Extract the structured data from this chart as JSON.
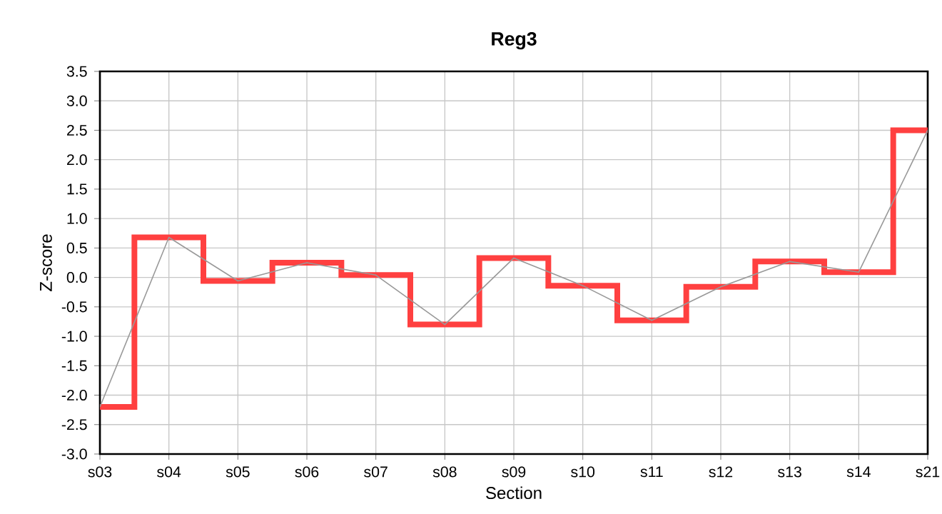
{
  "chart_data": {
    "type": "step",
    "title": "Reg3",
    "xlabel": "Section",
    "ylabel": "Z-score",
    "categories": [
      "s03",
      "s04",
      "s05",
      "s06",
      "s07",
      "s08",
      "s09",
      "s10",
      "s11",
      "s12",
      "s13",
      "s14",
      "s21"
    ],
    "series": [
      {
        "color": "#ff4040",
        "values": [
          -2.2,
          0.68,
          -0.06,
          0.25,
          0.04,
          -0.8,
          0.33,
          -0.14,
          -0.73,
          -0.16,
          0.27,
          0.09,
          2.5
        ]
      },
      {
        "type": "line",
        "color": "#999999",
        "values": [
          -2.2,
          0.68,
          -0.06,
          0.25,
          0.04,
          -0.8,
          0.33,
          -0.14,
          -0.73,
          -0.16,
          0.27,
          0.09,
          2.5
        ]
      }
    ],
    "ylim": [
      -3.0,
      3.5
    ],
    "yticks": [
      {
        "value": -3,
        "label": "-3.0"
      },
      {
        "value": -2.5,
        "label": "-2.5"
      },
      {
        "value": -2,
        "label": "-2.0"
      },
      {
        "value": -1.5,
        "label": "-1.5"
      },
      {
        "value": -1,
        "label": "-1.0"
      },
      {
        "value": -0.5,
        "label": "-0.5"
      },
      {
        "value": 0,
        "label": "0.0"
      },
      {
        "value": 0.5,
        "label": "0.5"
      },
      {
        "value": 1,
        "label": "1.0"
      },
      {
        "value": 1.5,
        "label": "1.5"
      },
      {
        "value": 2,
        "label": "2.0"
      },
      {
        "value": 2.5,
        "label": "2.5"
      },
      {
        "value": 3,
        "label": "3.0"
      },
      {
        "value": 3.5,
        "label": "3.5"
      }
    ],
    "grid": true,
    "marker": "none"
  }
}
